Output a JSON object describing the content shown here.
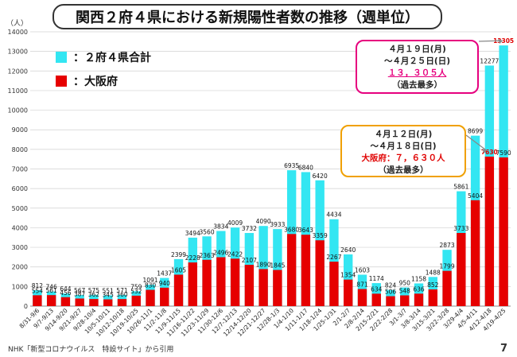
{
  "title": "関西２府４県における新規陽性者数の推移（週単位）",
  "y_unit": "（人）",
  "legend": [
    {
      "label": "：２府４県合計",
      "color": "#33e6f2"
    },
    {
      "label": "：大阪府",
      "color": "#e60000"
    }
  ],
  "callout_latest": {
    "line1": "４月１９日(月)",
    "line2": "～４月２５日(日)",
    "line3": "１３，３０５人",
    "line4": "（過去最多）"
  },
  "callout_prev": {
    "line1": "４月１２日(月)",
    "line2": "～４月１８日(日)",
    "line3": "大阪府：７，６３０人",
    "line4": "（過去最多）"
  },
  "footer": "NHK「新型コロナウイルス　特設サイト」から引用",
  "page_number": "7",
  "chart_data": {
    "type": "bar",
    "categories": [
      "8/31-9/6",
      "9/7-9/13",
      "9/14-9/20",
      "9/21-9/27",
      "9/28-10/4",
      "10/5-10/11",
      "10/12-10/18",
      "10/19-10/25",
      "10/26-11/1",
      "11/2-11/8",
      "11/9-11/15",
      "11/16-11/22",
      "11/23-11/29",
      "11/30-12/6",
      "12/7-12/13",
      "12/14-12/20",
      "12/21-12/27",
      "12/28-1/3",
      "1/4-1/10",
      "1/11-1/17",
      "1/18-1/24",
      "1/25-1/31",
      "2/1-2/7",
      "2/8-2/14",
      "2/15-2/21",
      "2/22-2/28",
      "3/1-3/7",
      "3/8-3/14",
      "3/15-3/21",
      "3/22-3/28",
      "3/29-4/4",
      "4/5-4/11",
      "4/12-4/18",
      "4/19-4/25"
    ],
    "series": [
      {
        "name": "２府４県合計",
        "color": "#33e6f2",
        "values": [
          812,
          746,
          644,
          567,
          575,
          551,
          571,
          759,
          1091,
          1437,
          2399,
          3494,
          3560,
          3834,
          4009,
          3732,
          4090,
          3933,
          6935,
          6840,
          6420,
          4434,
          2640,
          1603,
          1174,
          824,
          950,
          1158,
          1488,
          2873,
          5861,
          8699,
          12277,
          13305
        ]
      },
      {
        "name": "大阪府",
        "color": "#e60000",
        "values": [
          554,
          561,
          456,
          387,
          362,
          345,
          360,
          532,
          830,
          940,
          1605,
          2228,
          2363,
          2496,
          2422,
          2107,
          1890,
          1845,
          3680,
          3643,
          3359,
          2267,
          1354,
          871,
          634,
          506,
          548,
          636,
          852,
          1799,
          3733,
          5404,
          7630,
          7590
        ]
      }
    ],
    "ylim": [
      0,
      14000
    ],
    "yticks": [
      0,
      1000,
      2000,
      3000,
      4000,
      5000,
      6000,
      7000,
      8000,
      9000,
      10000,
      11000,
      12000,
      13000,
      14000
    ],
    "grid": true
  }
}
